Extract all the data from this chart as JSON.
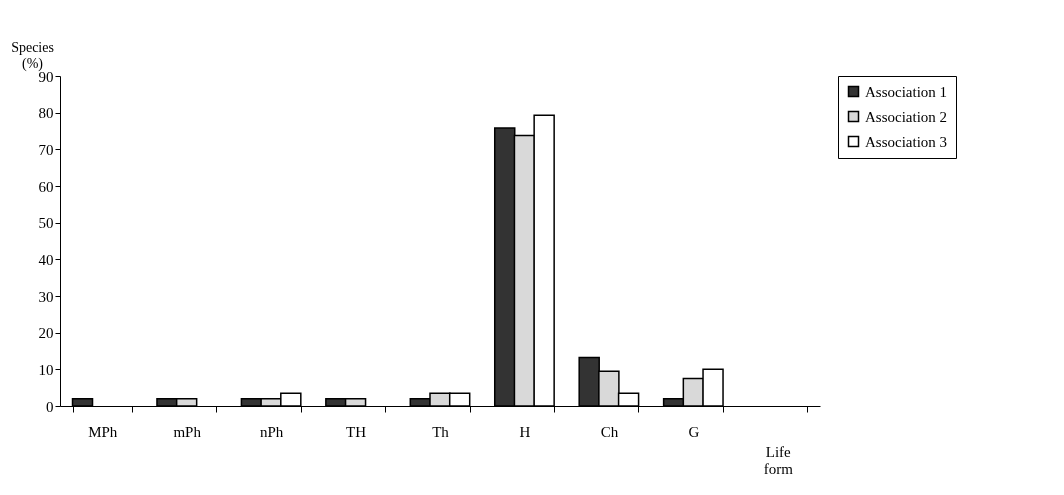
{
  "chart_data": {
    "type": "bar",
    "ylabel": "Species\n(%)",
    "xlabel": "Life\nform",
    "categories": [
      "MPh",
      "mPh",
      "nPh",
      "TH",
      "Th",
      "H",
      "Ch",
      "G",
      null
    ],
    "series": [
      {
        "name": "Association 1",
        "color": "#333333",
        "values": [
          2,
          2,
          2,
          2,
          2,
          75.8,
          13.2,
          2,
          null
        ]
      },
      {
        "name": "Association 2",
        "color": "#d9d9d9",
        "values": [
          null,
          2,
          2,
          2,
          3.5,
          73.8,
          9.5,
          7.5,
          null
        ]
      },
      {
        "name": "Association 3",
        "color": "#ffffff",
        "values": [
          null,
          null,
          3.5,
          null,
          3.5,
          79.3,
          3.5,
          10,
          null
        ]
      }
    ],
    "ylim": [
      0,
      90
    ],
    "yticks": [
      0,
      10,
      20,
      30,
      40,
      50,
      60,
      70,
      80,
      90
    ],
    "grid": false,
    "legend": "right"
  }
}
